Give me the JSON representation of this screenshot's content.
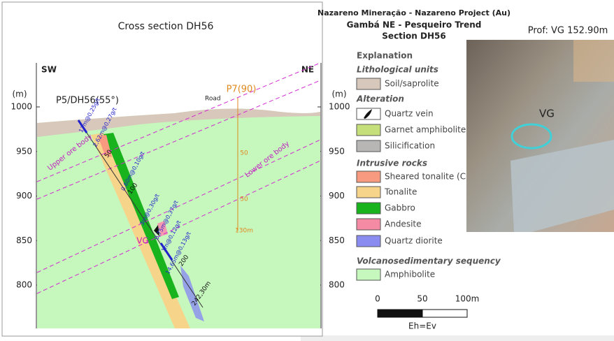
{
  "header": {
    "line1": "Nazareno Mineração - Nazareno Project (Au)",
    "line2": "Gambá NE - Pesqueiro Trend",
    "line3": "Section DH56"
  },
  "section": {
    "title": "Cross section DH56",
    "left_side": "SW",
    "right_side": "NE",
    "unit": "(m)",
    "elevations": [
      1000,
      950,
      900,
      850,
      800
    ],
    "hole": "P5/DH56(55°)",
    "road": "Road",
    "hole2": "P7(90)",
    "upper_ore": "Upper ore body",
    "lower_ore": "Lower ore body",
    "vg": "VG",
    "intercepts": [
      "17m@0,25g/t",
      "2,62m@0,27g/t",
      "0,60m@0,10g/t",
      "3m@0,30g/t",
      "0,75m@0,37g/t",
      "1m@0,12g/t",
      "14,65m@0,13g/t"
    ],
    "depths": [
      "50",
      "100",
      "200",
      "242,30m"
    ],
    "hole2_depths": [
      "50",
      "50",
      "130m"
    ]
  },
  "legend": {
    "title": "Explanation",
    "groups": [
      {
        "heading": "Lithological units",
        "items": [
          "Soil/saprolite"
        ]
      },
      {
        "heading": "Alteration",
        "items": [
          "Quartz vein",
          "Garnet amphibolite",
          "Silicification"
        ]
      },
      {
        "heading": "Intrusive rocks",
        "items": [
          "Sheared tonalite (Ch",
          "Tonalite",
          "Gabbro",
          "Andesite",
          "Quartz diorite"
        ]
      },
      {
        "heading": "Volcanosedimentary sequency",
        "items": [
          "Amphibolite"
        ]
      }
    ]
  },
  "scale": {
    "ticks": [
      "0",
      "50",
      "100m"
    ],
    "note": "Eh=Ev"
  },
  "photo": {
    "caption": "Prof: VG 152.90m",
    "marker": "VG"
  }
}
